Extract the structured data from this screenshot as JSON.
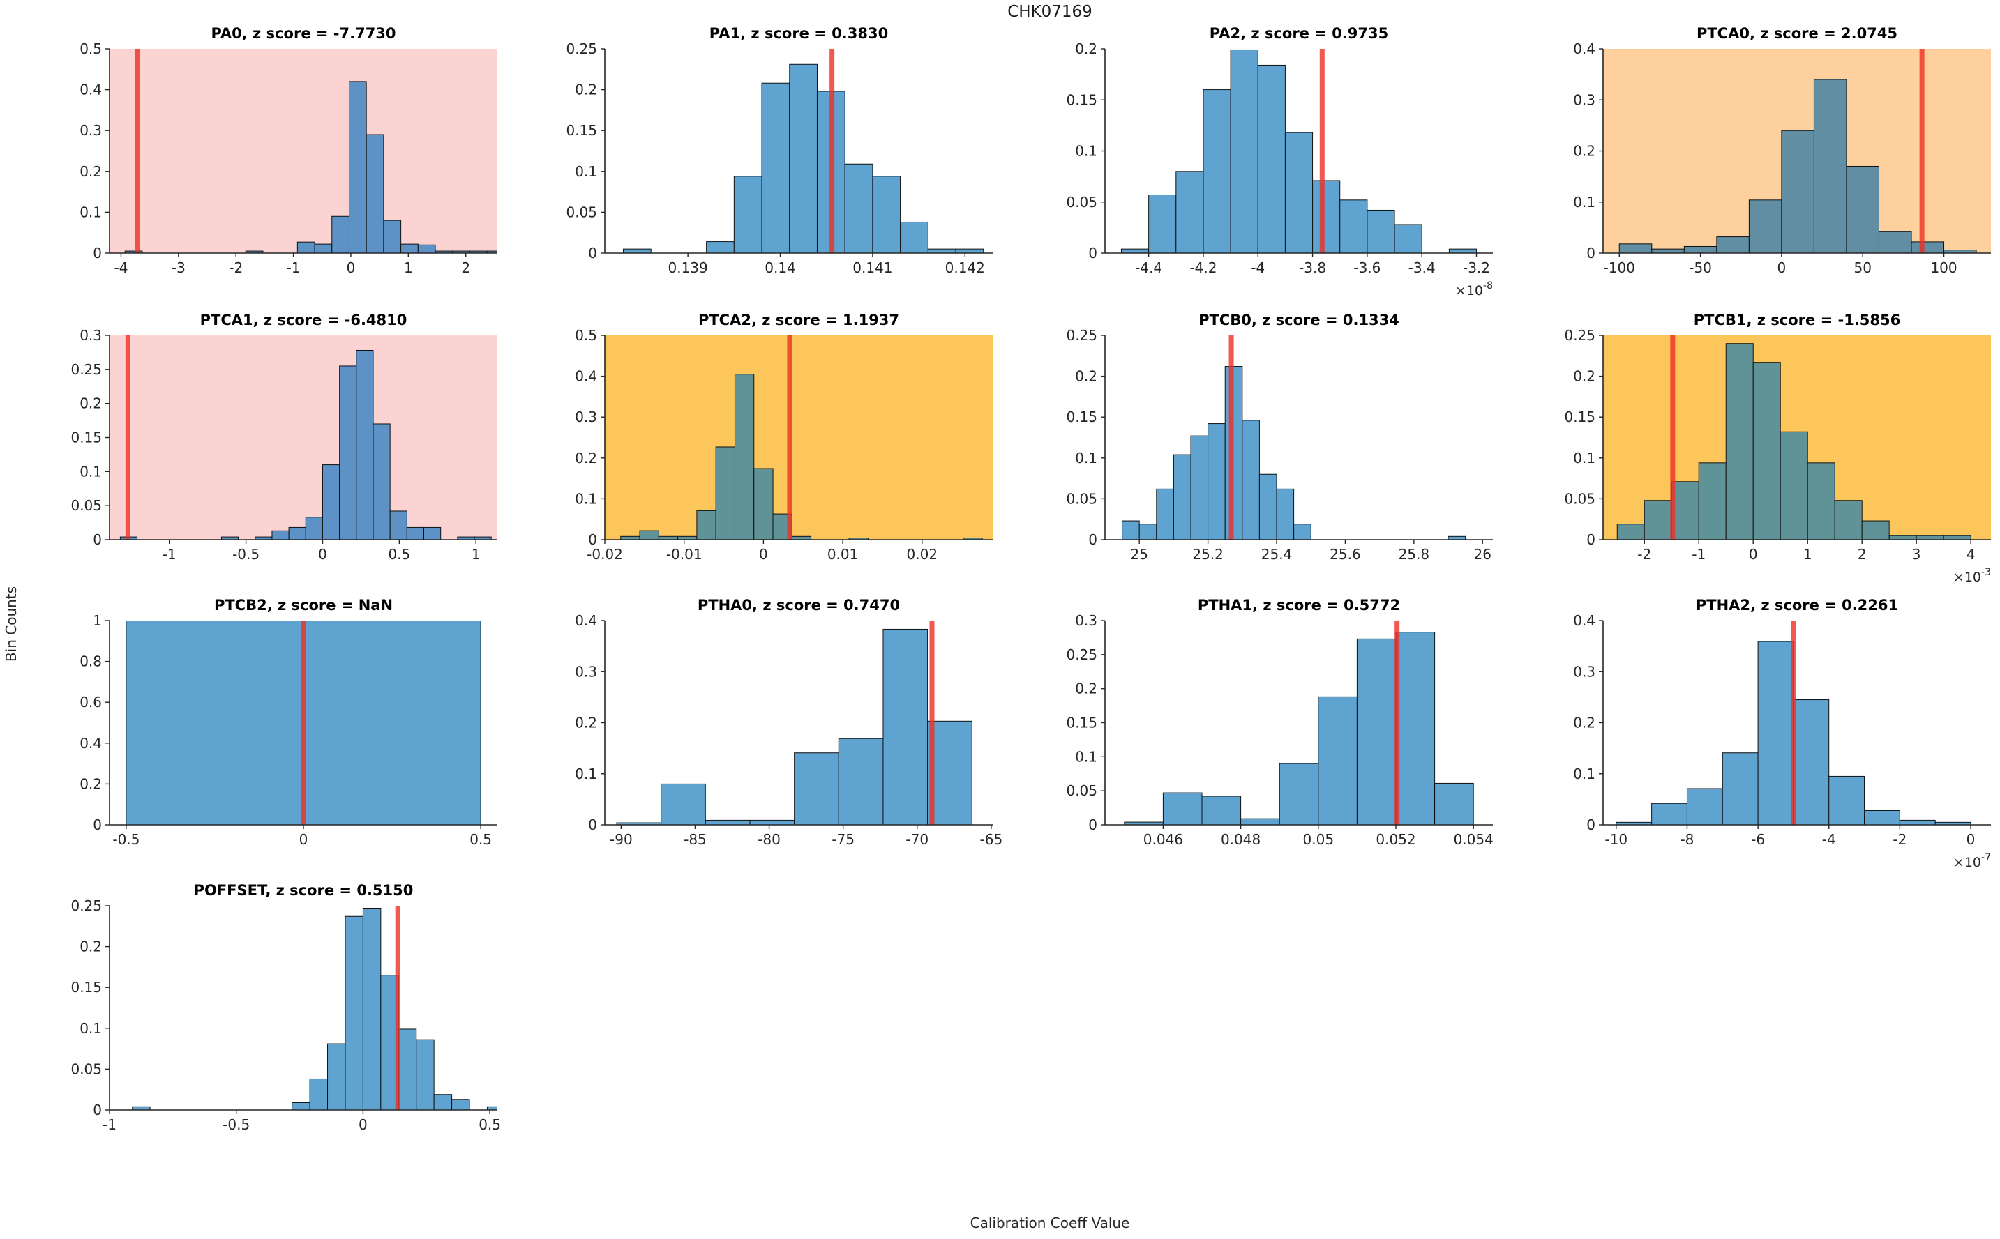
{
  "figure": {
    "title": "CHK07169",
    "xlabel": "Calibration Coeff Value",
    "ylabel": "Bin Counts"
  },
  "colors": {
    "backgrounds": {
      "pink": "#fcd3d3",
      "peach": "#fdd09e",
      "gold": "#fcc65a"
    },
    "bars": {
      "default": "#5fa3d1",
      "pink": "#5c92c5",
      "peach": "#618ea2",
      "gold": "#609398"
    },
    "bar_edge": "#111111",
    "red_line": "#ed3024",
    "axis": "#262626",
    "tick_text": "#262626"
  },
  "chart_data": [
    {
      "name": "PA0",
      "title": "PA0, z score = -7.7730",
      "z_score": "-7.7730",
      "type": "histogram",
      "background": "pink",
      "xlim": [
        -4.2,
        2.55
      ],
      "ylim": [
        0,
        0.5
      ],
      "xtick_values": [
        -4,
        -3,
        -2,
        -1,
        0,
        1,
        2
      ],
      "xtick_labels": [
        "-4",
        "-3",
        "-2",
        "-1",
        "0",
        "1",
        "2"
      ],
      "ytick_values": [
        0,
        0.1,
        0.2,
        0.3,
        0.4,
        0.5
      ],
      "ytick_labels": [
        "0",
        "0.1",
        "0.2",
        "0.3",
        "0.4",
        "0.5"
      ],
      "x_exponent": null,
      "bin_start": -3.93,
      "bin_width": 0.3,
      "heights": [
        0.005,
        0,
        0,
        0,
        0,
        0,
        0,
        0.005,
        0,
        0,
        0.027,
        0.022,
        0.09,
        0.42,
        0.29,
        0.08,
        0.022,
        0.02,
        0.005,
        0.005,
        0.005,
        0.005
      ],
      "red_line_x": -3.72
    },
    {
      "name": "PA1",
      "title": "PA1, z score = 0.3830",
      "z_score": "0.3830",
      "type": "histogram",
      "background": null,
      "xlim": [
        0.1381,
        0.1423
      ],
      "ylim": [
        0,
        0.25
      ],
      "xtick_values": [
        0.139,
        0.14,
        0.141,
        0.142
      ],
      "xtick_labels": [
        "0.139",
        "0.14",
        "0.141",
        "0.142"
      ],
      "ytick_values": [
        0,
        0.05,
        0.1,
        0.15,
        0.2,
        0.25
      ],
      "ytick_labels": [
        "0",
        "0.05",
        "0.1",
        "0.15",
        "0.2",
        "0.25"
      ],
      "x_exponent": null,
      "bin_start": 0.1383,
      "bin_width": 0.0003,
      "heights": [
        0.005,
        0,
        0,
        0.014,
        0.094,
        0.208,
        0.231,
        0.198,
        0.109,
        0.094,
        0.038,
        0.005,
        0.005
      ],
      "red_line_x": 0.14056
    },
    {
      "name": "PA2",
      "title": "PA2, z score = 0.9735",
      "z_score": "0.9735",
      "type": "histogram",
      "background": null,
      "xlim": [
        -4.56,
        -3.14
      ],
      "ylim": [
        0,
        0.2
      ],
      "xtick_values": [
        -4.4,
        -4.2,
        -4,
        -3.8,
        -3.6,
        -3.4,
        -3.2
      ],
      "xtick_labels": [
        "-4.4",
        "-4.2",
        "-4",
        "-3.8",
        "-3.6",
        "-3.4",
        "-3.2"
      ],
      "ytick_values": [
        0,
        0.05,
        0.1,
        0.15,
        0.2
      ],
      "ytick_labels": [
        "0",
        "0.05",
        "0.1",
        "0.15",
        "0.2"
      ],
      "x_exponent": "-8",
      "bin_start": -4.5,
      "bin_width": 0.1,
      "heights": [
        0.004,
        0.057,
        0.08,
        0.16,
        0.199,
        0.184,
        0.118,
        0.071,
        0.052,
        0.042,
        0.028,
        0,
        0.004
      ],
      "red_line_x": -3.765
    },
    {
      "name": "PTCA0",
      "title": "PTCA0, z score = 2.0745",
      "z_score": "2.0745",
      "type": "histogram",
      "background": "peach",
      "xlim": [
        -110,
        129
      ],
      "ylim": [
        0,
        0.4
      ],
      "xtick_values": [
        -100,
        -50,
        0,
        50,
        100
      ],
      "xtick_labels": [
        "-100",
        "-50",
        "0",
        "50",
        "100"
      ],
      "ytick_values": [
        0,
        0.1,
        0.2,
        0.3,
        0.4
      ],
      "ytick_labels": [
        "0",
        "0.1",
        "0.2",
        "0.3",
        "0.4"
      ],
      "x_exponent": null,
      "bin_start": -100,
      "bin_width": 20,
      "heights": [
        0.018,
        0.008,
        0.013,
        0.032,
        0.104,
        0.24,
        0.34,
        0.17,
        0.042,
        0.022,
        0.006
      ],
      "red_line_x": 86.5
    },
    {
      "name": "PTCA1",
      "title": "PTCA1, z score = -6.4810",
      "z_score": "-6.4810",
      "type": "histogram",
      "background": "pink",
      "xlim": [
        -1.39,
        1.14
      ],
      "ylim": [
        0,
        0.3
      ],
      "xtick_values": [
        -1,
        -0.5,
        0,
        0.5,
        1
      ],
      "xtick_labels": [
        "-1",
        "-0.5",
        "0",
        "0.5",
        "1"
      ],
      "ytick_values": [
        0,
        0.05,
        0.1,
        0.15,
        0.2,
        0.25,
        0.3
      ],
      "ytick_labels": [
        "0",
        "0.05",
        "0.1",
        "0.15",
        "0.2",
        "0.25",
        "0.3"
      ],
      "x_exponent": null,
      "bin_start": -1.32,
      "bin_width": 0.11,
      "heights": [
        0.004,
        0,
        0,
        0,
        0,
        0,
        0.004,
        0,
        0.004,
        0.013,
        0.018,
        0.033,
        0.11,
        0.255,
        0.278,
        0.17,
        0.042,
        0.018,
        0.018,
        0,
        0.004,
        0.004
      ],
      "red_line_x": -1.27
    },
    {
      "name": "PTCA2",
      "title": "PTCA2, z score = 1.1937",
      "z_score": "1.1937",
      "type": "histogram",
      "background": "gold",
      "xlim": [
        -0.02,
        0.0289
      ],
      "ylim": [
        0,
        0.5
      ],
      "xtick_values": [
        -0.02,
        -0.01,
        0,
        0.01,
        0.02
      ],
      "xtick_labels": [
        "-0.02",
        "-0.01",
        "0",
        "0.01",
        "0.02"
      ],
      "ytick_values": [
        0,
        0.1,
        0.2,
        0.3,
        0.4,
        0.5
      ],
      "ytick_labels": [
        "0",
        "0.1",
        "0.2",
        "0.3",
        "0.4",
        "0.5"
      ],
      "x_exponent": null,
      "bin_start": -0.018,
      "bin_width": 0.0024,
      "heights": [
        0.008,
        0.022,
        0.008,
        0.008,
        0.071,
        0.227,
        0.405,
        0.174,
        0.063,
        0.008,
        0,
        0,
        0.004,
        0,
        0,
        0,
        0,
        0,
        0.004
      ],
      "red_line_x": 0.0033
    },
    {
      "name": "PTCB0",
      "title": "PTCB0, z score = 0.1334",
      "z_score": "0.1334",
      "type": "histogram",
      "background": null,
      "xlim": [
        24.9,
        26.03
      ],
      "ylim": [
        0,
        0.25
      ],
      "xtick_values": [
        25,
        25.2,
        25.4,
        25.6,
        25.8,
        26
      ],
      "xtick_labels": [
        "25",
        "25.2",
        "25.4",
        "25.6",
        "25.8",
        "26"
      ],
      "ytick_values": [
        0,
        0.05,
        0.1,
        0.15,
        0.2,
        0.25
      ],
      "ytick_labels": [
        "0",
        "0.05",
        "0.1",
        "0.15",
        "0.2",
        "0.25"
      ],
      "x_exponent": null,
      "bin_start": 24.95,
      "bin_width": 0.05,
      "heights": [
        0.023,
        0.019,
        0.062,
        0.104,
        0.127,
        0.142,
        0.212,
        0.146,
        0.08,
        0.062,
        0.019,
        0,
        0,
        0,
        0,
        0,
        0,
        0,
        0,
        0.004
      ],
      "red_line_x": 25.268
    },
    {
      "name": "PTCB1",
      "title": "PTCB1, z score = -1.5856",
      "z_score": "-1.5856",
      "type": "histogram",
      "background": "gold",
      "xlim": [
        -2.76,
        4.37
      ],
      "ylim": [
        0,
        0.25
      ],
      "xtick_values": [
        -2,
        -1,
        0,
        1,
        2,
        3,
        4
      ],
      "xtick_labels": [
        "-2",
        "-1",
        "0",
        "1",
        "2",
        "3",
        "4"
      ],
      "ytick_values": [
        0,
        0.05,
        0.1,
        0.15,
        0.2,
        0.25
      ],
      "ytick_labels": [
        "0",
        "0.05",
        "0.1",
        "0.15",
        "0.2",
        "0.25"
      ],
      "x_exponent": "-3",
      "bin_start": -2.5,
      "bin_width": 0.5,
      "heights": [
        0.019,
        0.048,
        0.071,
        0.094,
        0.24,
        0.217,
        0.132,
        0.094,
        0.048,
        0.023,
        0.005,
        0.005,
        0.005
      ],
      "red_line_x": -1.48
    },
    {
      "name": "PTCB2",
      "title": "PTCB2, z score = NaN",
      "z_score": "NaN",
      "type": "histogram",
      "background": null,
      "xlim": [
        -0.547,
        0.547
      ],
      "ylim": [
        0,
        1
      ],
      "xtick_values": [
        -0.5,
        0,
        0.5
      ],
      "xtick_labels": [
        "-0.5",
        "0",
        "0.5"
      ],
      "ytick_values": [
        0,
        0.2,
        0.4,
        0.6,
        0.8,
        1
      ],
      "ytick_labels": [
        "0",
        "0.2",
        "0.4",
        "0.6",
        "0.8",
        "1"
      ],
      "x_exponent": null,
      "bin_start": -0.5,
      "bin_width": 1,
      "heights": [
        1
      ],
      "red_line_x": 0
    },
    {
      "name": "PTHA0",
      "title": "PTHA0, z score = 0.7470",
      "z_score": "0.7470",
      "type": "histogram",
      "background": null,
      "xlim": [
        -91.1,
        -64.9
      ],
      "ylim": [
        0,
        0.4
      ],
      "xtick_values": [
        -90,
        -85,
        -80,
        -75,
        -70,
        -65
      ],
      "xtick_labels": [
        "-90",
        "-85",
        "-80",
        "-75",
        "-70",
        "-65"
      ],
      "ytick_values": [
        0,
        0.1,
        0.2,
        0.3,
        0.4
      ],
      "ytick_labels": [
        "0",
        "0.1",
        "0.2",
        "0.3",
        "0.4"
      ],
      "x_exponent": null,
      "bin_start": -90.3,
      "bin_width": 3,
      "heights": [
        0.004,
        0.08,
        0.009,
        0.009,
        0.141,
        0.169,
        0.383,
        0.203
      ],
      "red_line_x": -69
    },
    {
      "name": "PTHA1",
      "title": "PTHA1, z score = 0.5772",
      "z_score": "0.5772",
      "type": "histogram",
      "background": null,
      "xlim": [
        0.0445,
        0.0545
      ],
      "ylim": [
        0,
        0.3
      ],
      "xtick_values": [
        0.046,
        0.048,
        0.05,
        0.052,
        0.054
      ],
      "xtick_labels": [
        "0.046",
        "0.048",
        "0.05",
        "0.052",
        "0.054"
      ],
      "ytick_values": [
        0,
        0.05,
        0.1,
        0.15,
        0.2,
        0.25,
        0.3
      ],
      "ytick_labels": [
        "0",
        "0.05",
        "0.1",
        "0.15",
        "0.2",
        "0.25",
        "0.3"
      ],
      "x_exponent": null,
      "bin_start": 0.045,
      "bin_width": 0.001,
      "heights": [
        0.004,
        0.047,
        0.042,
        0.009,
        0.09,
        0.188,
        0.273,
        0.283,
        0.061
      ],
      "red_line_x": 0.05203
    },
    {
      "name": "PTHA2",
      "title": "PTHA2, z score = 0.2261",
      "z_score": "0.2261",
      "type": "histogram",
      "background": null,
      "xlim": [
        -10.37,
        0.57
      ],
      "ylim": [
        0,
        0.4
      ],
      "xtick_values": [
        -10,
        -8,
        -6,
        -4,
        -2,
        0
      ],
      "xtick_labels": [
        "-10",
        "-8",
        "-6",
        "-4",
        "-2",
        "0"
      ],
      "ytick_values": [
        0,
        0.1,
        0.2,
        0.3,
        0.4
      ],
      "ytick_labels": [
        "0",
        "0.1",
        "0.2",
        "0.3",
        "0.4"
      ],
      "x_exponent": "-7",
      "bin_start": -10,
      "bin_width": 1,
      "heights": [
        0.005,
        0.042,
        0.071,
        0.141,
        0.359,
        0.245,
        0.095,
        0.028,
        0.009,
        0.005
      ],
      "red_line_x": -5.0
    },
    {
      "name": "POFFSET",
      "title": "POFFSET, z score = 0.5150",
      "z_score": "0.5150",
      "type": "histogram",
      "background": null,
      "xlim": [
        -1.0,
        0.53
      ],
      "ylim": [
        0,
        0.25
      ],
      "xtick_values": [
        -1,
        -0.5,
        0,
        0.5
      ],
      "xtick_labels": [
        "-1",
        "-0.5",
        "0",
        "0.5"
      ],
      "ytick_values": [
        0,
        0.05,
        0.1,
        0.15,
        0.2,
        0.25
      ],
      "ytick_labels": [
        "0",
        "0.05",
        "0.1",
        "0.15",
        "0.2",
        "0.25"
      ],
      "x_exponent": null,
      "bin_start": -0.91,
      "bin_width": 0.07,
      "heights": [
        0.004,
        0,
        0,
        0,
        0,
        0,
        0,
        0,
        0,
        0.009,
        0.038,
        0.081,
        0.237,
        0.247,
        0.165,
        0.099,
        0.086,
        0.019,
        0.013,
        0,
        0.004
      ],
      "red_line_x": 0.137
    }
  ]
}
